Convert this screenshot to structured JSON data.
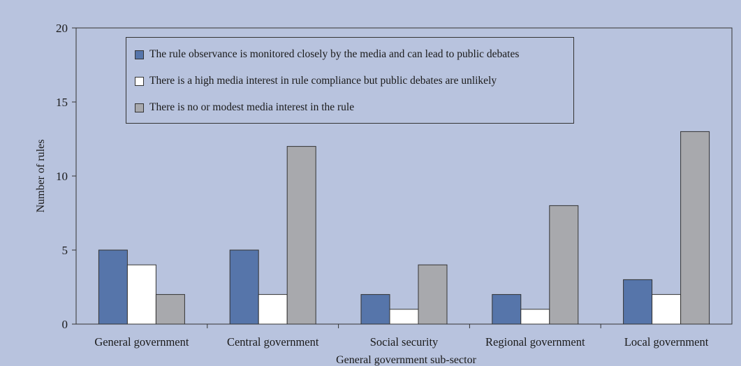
{
  "chart_data": {
    "type": "bar",
    "title": "",
    "xlabel": "General government sub-sector",
    "ylabel": "Number of rules",
    "ylim": [
      0,
      20
    ],
    "yticks": [
      0,
      5,
      10,
      15,
      20
    ],
    "grid": false,
    "legend_position": "top",
    "categories": [
      "General government",
      "Central government",
      "Social security",
      "Regional government",
      "Local government"
    ],
    "series": [
      {
        "name": "The rule observance is monitored closely by the media and can lead to public debates",
        "color": "#5675aa",
        "values": [
          5,
          5,
          2,
          2,
          3
        ]
      },
      {
        "name": "There is a high media interest in rule compliance but public debates are unlikely",
        "color": "#ffffff",
        "values": [
          4,
          2,
          1,
          1,
          2
        ]
      },
      {
        "name": "There is no or modest media interest in the rule",
        "color": "#a8a9ad",
        "values": [
          2,
          12,
          4,
          8,
          13
        ]
      }
    ]
  },
  "colors": {
    "background": "#b8c3de",
    "axis": "#333333"
  }
}
